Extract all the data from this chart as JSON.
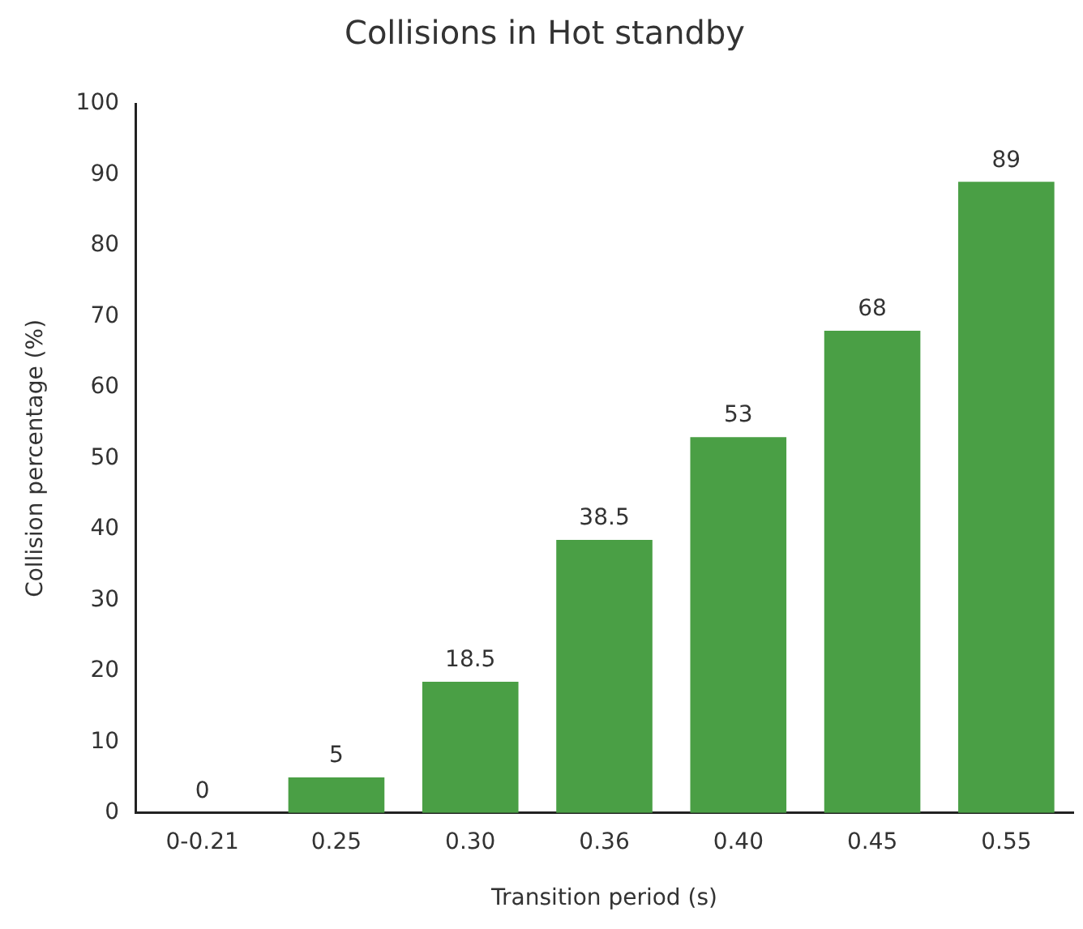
{
  "chart_data": {
    "type": "bar",
    "title": "Collisions in Hot standby",
    "xlabel": "Transition period (s)",
    "ylabel": "Collision percentage (%)",
    "categories": [
      "0-0.21",
      "0.25",
      "0.30",
      "0.36",
      "0.40",
      "0.45",
      "0.55"
    ],
    "values": [
      0,
      5,
      18.5,
      38.5,
      53,
      68,
      89
    ],
    "color": "#4a9f45",
    "ylim": [
      0,
      100
    ],
    "yticks": [
      0,
      10,
      20,
      30,
      40,
      50,
      60,
      70,
      80,
      90,
      100
    ],
    "grid": false,
    "legend": false,
    "data_labels": true
  }
}
